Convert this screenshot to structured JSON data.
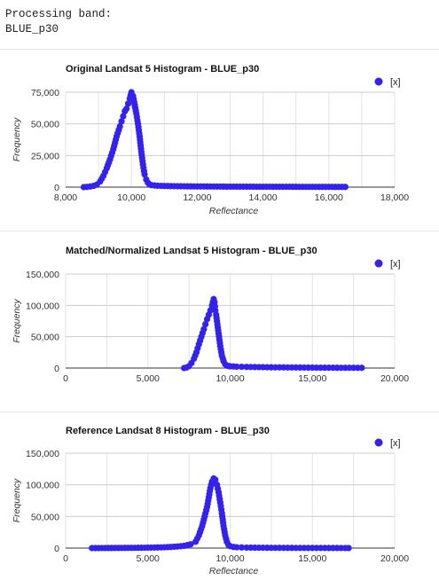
{
  "console": {
    "line1": "Processing band:",
    "line2": "BLUE_p30"
  },
  "chart_data": [
    {
      "type": "scatter",
      "title": "Original Landsat 5 Histogram - BLUE_p30",
      "xlabel": "Reflectance",
      "ylabel": "Frequency",
      "legend": "[x]",
      "legend_position": "top-right",
      "xlim": [
        8000,
        18000
      ],
      "ylim": [
        0,
        75000
      ],
      "xticks": [
        "8,000",
        "10,000",
        "12,000",
        "14,000",
        "16,000",
        "18,000"
      ],
      "xtick_values": [
        8000,
        10000,
        12000,
        14000,
        16000,
        18000
      ],
      "yticks": [
        "0",
        "25,000",
        "50,000",
        "75,000"
      ],
      "ytick_values": [
        0,
        25000,
        50000,
        75000
      ],
      "grid": true,
      "color": "#3322ee",
      "x": [
        8550,
        8650,
        8750,
        8850,
        8950,
        9050,
        9150,
        9250,
        9350,
        9450,
        9550,
        9650,
        9700,
        9750,
        9800,
        9850,
        9900,
        9950,
        10000,
        10050,
        10100,
        10150,
        10200,
        10250,
        10300,
        10350,
        10400,
        10450,
        10500,
        10550,
        10600,
        10700,
        10800,
        10900,
        11000,
        11200,
        11400,
        11600,
        11800,
        12000,
        12300,
        12600,
        12900,
        13200,
        13500,
        13800,
        14100,
        14400,
        14700,
        15000,
        15300,
        15600,
        15900,
        16200,
        16500
      ],
      "y": [
        0,
        200,
        500,
        1000,
        2000,
        4500,
        9000,
        15000,
        22000,
        30000,
        40000,
        48000,
        52000,
        56000,
        60000,
        62000,
        66000,
        70000,
        75000,
        72000,
        65000,
        58000,
        50000,
        40000,
        28000,
        18000,
        10000,
        6000,
        3500,
        2200,
        1600,
        1300,
        1100,
        1000,
        900,
        800,
        700,
        650,
        600,
        550,
        500,
        450,
        400,
        380,
        350,
        320,
        300,
        280,
        260,
        240,
        220,
        200,
        180,
        160,
        150
      ]
    },
    {
      "type": "scatter",
      "title": "Matched/Normalized Landsat 5 Histogram - BLUE_p30",
      "xlabel": "",
      "ylabel": "Frequency",
      "legend": "[x]",
      "legend_position": "top-right",
      "xlim": [
        0,
        20000
      ],
      "ylim": [
        0,
        150000
      ],
      "xticks": [
        "0",
        "5,000",
        "10,000",
        "15,000",
        "20,000"
      ],
      "xtick_values": [
        0,
        5000,
        10000,
        15000,
        20000
      ],
      "yticks": [
        "0",
        "50,000",
        "100,000",
        "150,000"
      ],
      "ytick_values": [
        0,
        50000,
        100000,
        150000
      ],
      "grid": true,
      "color": "#3322ee",
      "x": [
        7200,
        7350,
        7500,
        7650,
        7800,
        7950,
        8100,
        8250,
        8400,
        8500,
        8600,
        8700,
        8800,
        8900,
        9000,
        9050,
        9100,
        9150,
        9200,
        9300,
        9400,
        9500,
        9600,
        9700,
        9800,
        9900,
        10000,
        10200,
        10400,
        10700,
        11000,
        11500,
        12000,
        12500,
        13000,
        13500,
        14000,
        14500,
        15000,
        15500,
        16000,
        16500,
        17000,
        17500,
        18000
      ],
      "y": [
        0,
        1000,
        3000,
        8000,
        15000,
        25000,
        38000,
        50000,
        62000,
        70000,
        78000,
        85000,
        92000,
        100000,
        110000,
        105000,
        92000,
        85000,
        75000,
        55000,
        35000,
        20000,
        11000,
        6000,
        4000,
        3200,
        2800,
        2500,
        2200,
        2000,
        1800,
        1600,
        1400,
        1200,
        1100,
        1000,
        900,
        800,
        700,
        600,
        550,
        500,
        450,
        400,
        350
      ]
    },
    {
      "type": "scatter",
      "title": "Reference Landsat 8 Histogram - BLUE_p30",
      "xlabel": "Reflectance",
      "ylabel": "Frequency",
      "legend": "[x]",
      "legend_position": "top-right",
      "xlim": [
        0,
        20000
      ],
      "ylim": [
        0,
        150000
      ],
      "xticks": [
        "0",
        "5,000",
        "10,000",
        "15,000",
        "20,000"
      ],
      "xtick_values": [
        0,
        5000,
        10000,
        15000,
        20000
      ],
      "yticks": [
        "0",
        "50,000",
        "100,000",
        "150,000"
      ],
      "ytick_values": [
        0,
        50000,
        100000,
        150000
      ],
      "grid": true,
      "color": "#3322ee",
      "x": [
        1600,
        2000,
        2400,
        2800,
        3200,
        3600,
        4000,
        4400,
        4800,
        5200,
        5600,
        6000,
        6400,
        6800,
        7200,
        7600,
        7900,
        8100,
        8300,
        8450,
        8600,
        8700,
        8800,
        8900,
        9000,
        9100,
        9200,
        9300,
        9400,
        9500,
        9600,
        9700,
        9800,
        9900,
        10000,
        10200,
        10400,
        10700,
        11000,
        11500,
        12000,
        12500,
        13000,
        13500,
        14000,
        14500,
        15000,
        15500,
        16000,
        16500,
        17000,
        17200
      ],
      "y": [
        0,
        50,
        100,
        150,
        200,
        300,
        400,
        500,
        600,
        800,
        1000,
        1300,
        1800,
        2500,
        3500,
        6000,
        10000,
        20000,
        35000,
        50000,
        65000,
        80000,
        95000,
        105000,
        110000,
        108000,
        100000,
        88000,
        72000,
        55000,
        35000,
        20000,
        10000,
        5000,
        3000,
        1800,
        1300,
        1000,
        800,
        650,
        550,
        450,
        380,
        320,
        280,
        240,
        200,
        170,
        150,
        130,
        110,
        100
      ]
    }
  ]
}
